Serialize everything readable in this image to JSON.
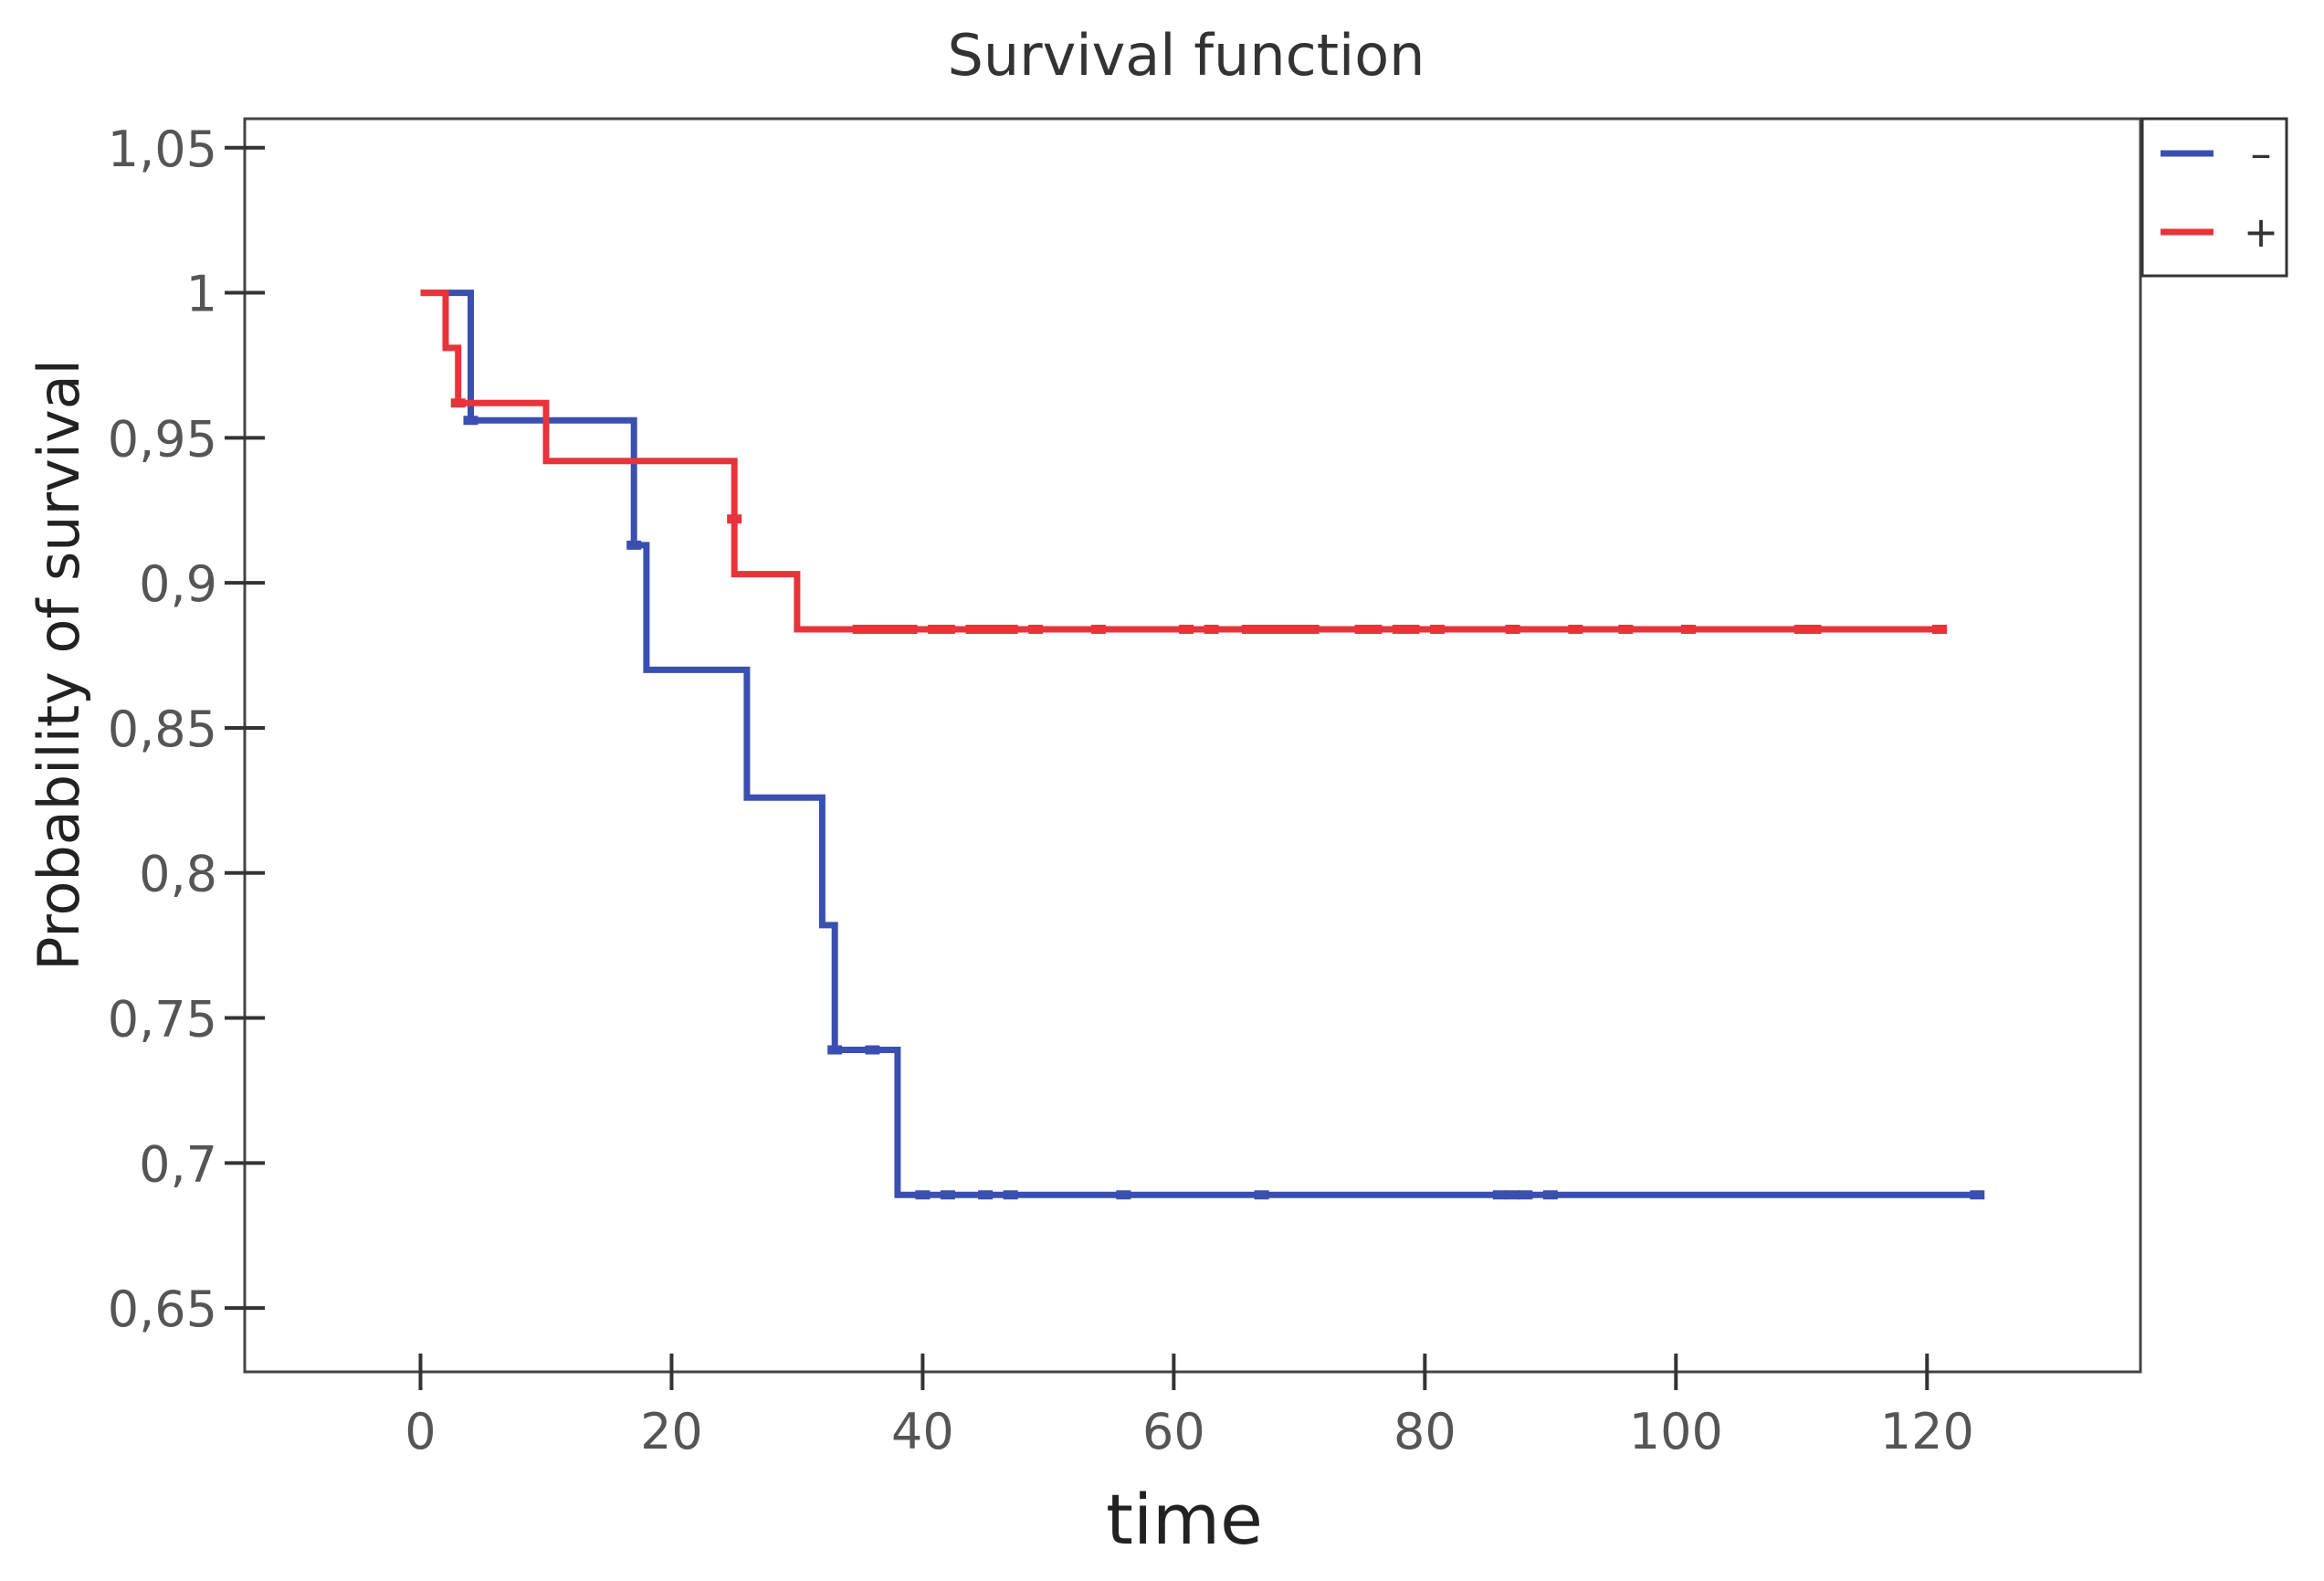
{
  "chart_data": {
    "type": "line",
    "step": true,
    "title": "Survival function",
    "xlabel": "time",
    "ylabel": "Probability of survival",
    "xlim": [
      -14,
      137
    ],
    "ylim": [
      0.628,
      1.06
    ],
    "xticks": [
      0,
      20,
      40,
      60,
      80,
      100,
      120
    ],
    "xtick_labels": [
      "0",
      "20",
      "40",
      "60",
      "80",
      "100",
      "120"
    ],
    "yticks": [
      0.65,
      0.7,
      0.75,
      0.8,
      0.85,
      0.9,
      0.95,
      1,
      1.05
    ],
    "ytick_labels": [
      "0,65",
      "0,7",
      "0,75",
      "0,8",
      "0,85",
      "0,9",
      "0,95",
      "1",
      "1,05"
    ],
    "grid": false,
    "legend_position": "top-right",
    "series": [
      {
        "name": "–",
        "color": "#3a4fb0",
        "x": [
          0,
          4,
          4,
          17,
          17,
          18,
          18,
          26,
          26,
          32,
          32,
          33,
          33,
          38,
          38,
          124
        ],
        "y": [
          1,
          1,
          0.956,
          0.956,
          0.913,
          0.913,
          0.87,
          0.87,
          0.826,
          0.826,
          0.782,
          0.782,
          0.739,
          0.739,
          0.689,
          0.689
        ],
        "censored": [
          [
            4,
            0.956
          ],
          [
            17,
            0.913
          ],
          [
            33,
            0.739
          ],
          [
            36,
            0.739
          ],
          [
            40,
            0.689
          ],
          [
            42,
            0.689
          ],
          [
            45,
            0.689
          ],
          [
            47,
            0.689
          ],
          [
            56,
            0.689
          ],
          [
            67,
            0.689
          ],
          [
            86,
            0.689
          ],
          [
            87,
            0.689
          ],
          [
            88,
            0.689
          ],
          [
            90,
            0.689
          ],
          [
            124,
            0.689
          ]
        ]
      },
      {
        "name": "+",
        "color": "#e8333a",
        "x": [
          0,
          2,
          2,
          3,
          3,
          10,
          10,
          25,
          25,
          30,
          30,
          121
        ],
        "y": [
          1,
          1,
          0.981,
          0.981,
          0.962,
          0.962,
          0.942,
          0.942,
          0.903,
          0.903,
          0.884,
          0.884
        ],
        "censored": [
          [
            3,
            0.962
          ],
          [
            25,
            0.922
          ],
          [
            35,
            0.884
          ],
          [
            36,
            0.884
          ],
          [
            37,
            0.884
          ],
          [
            38,
            0.884
          ],
          [
            39,
            0.884
          ],
          [
            41,
            0.884
          ],
          [
            42,
            0.884
          ],
          [
            44,
            0.884
          ],
          [
            45,
            0.884
          ],
          [
            46,
            0.884
          ],
          [
            47,
            0.884
          ],
          [
            49,
            0.884
          ],
          [
            54,
            0.884
          ],
          [
            61,
            0.884
          ],
          [
            63,
            0.884
          ],
          [
            66,
            0.884
          ],
          [
            67,
            0.884
          ],
          [
            68,
            0.884
          ],
          [
            69,
            0.884
          ],
          [
            70,
            0.884
          ],
          [
            71,
            0.884
          ],
          [
            75,
            0.884
          ],
          [
            76,
            0.884
          ],
          [
            78,
            0.884
          ],
          [
            79,
            0.884
          ],
          [
            81,
            0.884
          ],
          [
            87,
            0.884
          ],
          [
            92,
            0.884
          ],
          [
            96,
            0.884
          ],
          [
            101,
            0.884
          ],
          [
            110,
            0.884
          ],
          [
            111,
            0.884
          ],
          [
            121,
            0.884
          ]
        ]
      }
    ]
  }
}
